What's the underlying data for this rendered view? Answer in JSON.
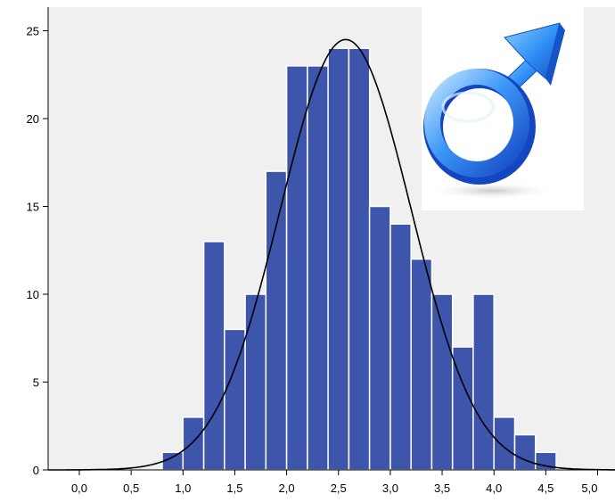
{
  "chart_data": {
    "type": "bar",
    "title": "",
    "xlabel": "",
    "ylabel": "",
    "xlim": [
      -0.47,
      5.2
    ],
    "ylim": [
      0,
      26
    ],
    "grid": false,
    "bin_width": 0.2,
    "x_ticks": [
      {
        "value": 0.0,
        "label": "0,0"
      },
      {
        "value": 0.5,
        "label": "0,5"
      },
      {
        "value": 1.0,
        "label": "1,0"
      },
      {
        "value": 1.5,
        "label": "1,5"
      },
      {
        "value": 2.0,
        "label": "2,0"
      },
      {
        "value": 2.5,
        "label": "2,5"
      },
      {
        "value": 3.0,
        "label": "3,0"
      },
      {
        "value": 3.5,
        "label": "3,5"
      },
      {
        "value": 4.0,
        "label": "4,0"
      },
      {
        "value": 4.5,
        "label": "4,5"
      },
      {
        "value": 5.0,
        "label": "5,0"
      }
    ],
    "y_ticks": [
      {
        "value": 0,
        "label": "0"
      },
      {
        "value": 5,
        "label": "5"
      },
      {
        "value": 10,
        "label": "10"
      },
      {
        "value": 15,
        "label": "15"
      },
      {
        "value": 20,
        "label": "20"
      },
      {
        "value": 25,
        "label": "25"
      }
    ],
    "bins": [
      {
        "start": 0.8,
        "count": 1
      },
      {
        "start": 1.0,
        "count": 3
      },
      {
        "start": 1.2,
        "count": 13
      },
      {
        "start": 1.4,
        "count": 8
      },
      {
        "start": 1.6,
        "count": 10
      },
      {
        "start": 1.8,
        "count": 17
      },
      {
        "start": 2.0,
        "count": 23
      },
      {
        "start": 2.2,
        "count": 23
      },
      {
        "start": 2.4,
        "count": 24
      },
      {
        "start": 2.6,
        "count": 24
      },
      {
        "start": 2.8,
        "count": 15
      },
      {
        "start": 3.0,
        "count": 14
      },
      {
        "start": 3.2,
        "count": 12
      },
      {
        "start": 3.4,
        "count": 10
      },
      {
        "start": 3.6,
        "count": 7
      },
      {
        "start": 3.8,
        "count": 10
      },
      {
        "start": 4.0,
        "count": 3
      },
      {
        "start": 4.2,
        "count": 2
      },
      {
        "start": 4.4,
        "count": 1
      }
    ],
    "normal_curve": {
      "mean": 2.57,
      "sd": 0.63,
      "peak": 24.5
    },
    "colors": {
      "bar_fill": "#3d55aa",
      "bar_stroke": "#ffffff",
      "plot_background": "#f0f0f0",
      "curve": "#000000",
      "axis": "#000000"
    }
  },
  "overlay_image": {
    "name": "male-symbol",
    "colors": {
      "background": "#ffffff",
      "symbol_light": "#9fd4ff",
      "symbol_mid": "#2f8ef5",
      "symbol_dark": "#1553c9"
    }
  }
}
